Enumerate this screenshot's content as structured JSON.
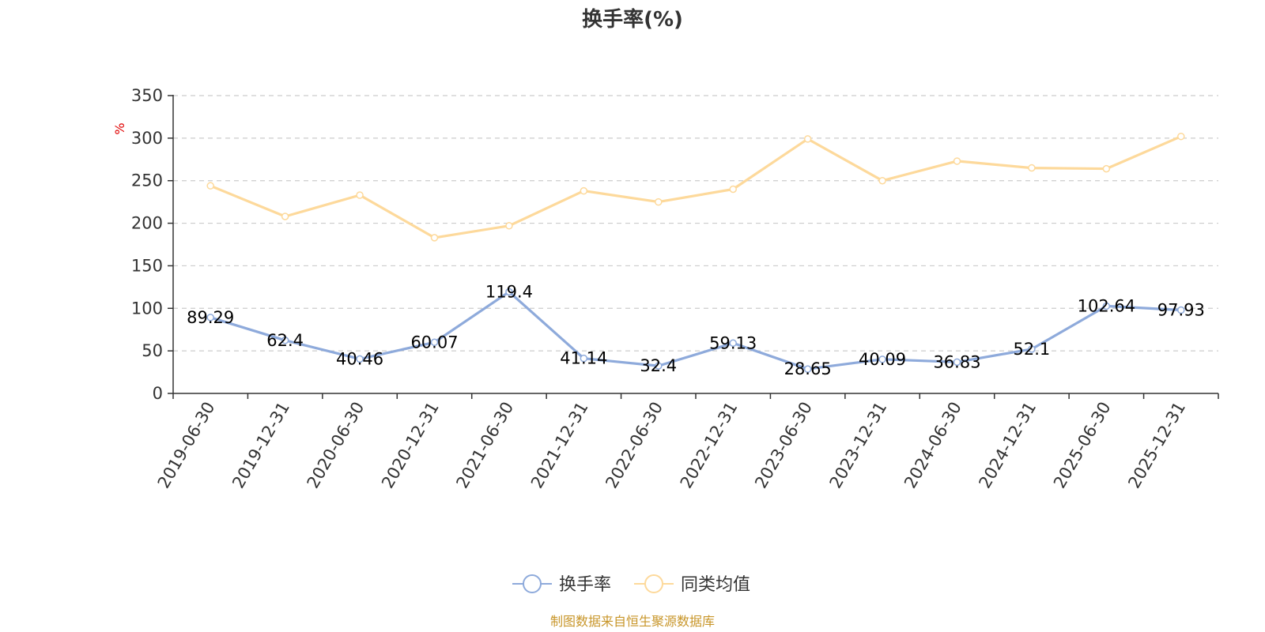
{
  "title": "换手率(%)",
  "unit_label": "%",
  "source": "制图数据来自恒生聚源数据库",
  "chart_data": {
    "type": "line",
    "title": "换手率(%)",
    "ylabel": "%",
    "xlabel": "",
    "ylim": [
      0,
      350
    ],
    "yticks": [
      0,
      50,
      100,
      150,
      200,
      250,
      300,
      350
    ],
    "grid": true,
    "legend_position": "bottom-center",
    "categories": [
      "2019-06-30",
      "2019-12-31",
      "2020-06-30",
      "2020-12-31",
      "2021-06-30",
      "2021-12-31",
      "2022-06-30",
      "2022-12-31",
      "2023-06-30",
      "2023-12-31",
      "2024-06-30",
      "2024-12-31",
      "2025-06-30",
      "2025-12-31"
    ],
    "series": [
      {
        "name": "换手率",
        "color": "#8eaadb",
        "values": [
          89.29,
          62.4,
          40.46,
          60.07,
          119.4,
          41.14,
          32.4,
          59.13,
          28.65,
          40.09,
          36.83,
          52.1,
          102.64,
          97.93
        ],
        "labels": [
          "89.29",
          "62.4",
          "40.46",
          "60.07",
          "119.4",
          "41.14",
          "32.4",
          "59.13",
          "28.65",
          "40.09",
          "36.83",
          "52.1",
          "102.64",
          "97.93"
        ]
      },
      {
        "name": "同类均值",
        "color": "#fdd99b",
        "values": [
          244,
          208,
          233,
          183,
          197,
          238,
          225,
          240,
          299,
          250,
          273,
          265,
          264,
          302
        ]
      }
    ]
  }
}
